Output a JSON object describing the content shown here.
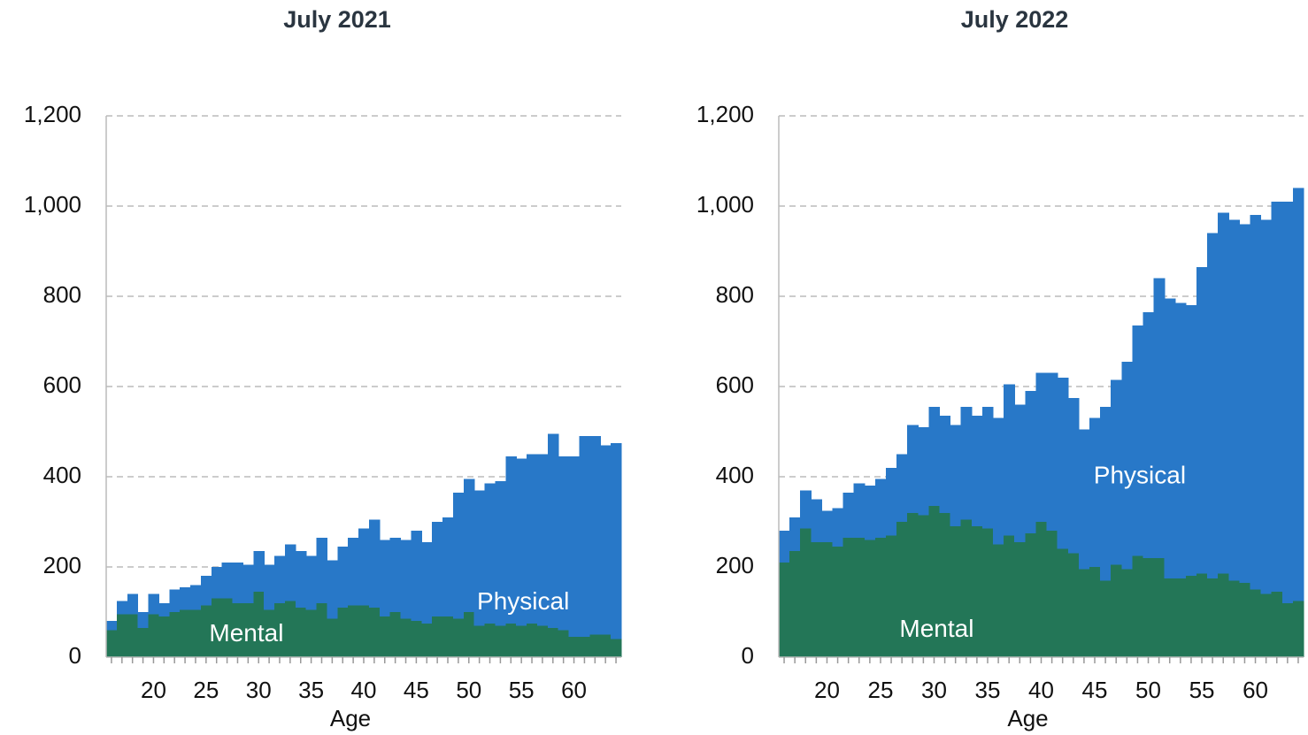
{
  "chart_data": [
    {
      "type": "bar",
      "stacked": true,
      "title": "July 2021",
      "x_label": "Age",
      "x": [
        16,
        17,
        18,
        19,
        20,
        21,
        22,
        23,
        24,
        25,
        26,
        27,
        28,
        29,
        30,
        31,
        32,
        33,
        34,
        35,
        36,
        37,
        38,
        39,
        40,
        41,
        42,
        43,
        44,
        45,
        46,
        47,
        48,
        49,
        50,
        51,
        52,
        53,
        54,
        55,
        56,
        57,
        58,
        59,
        60,
        61,
        62,
        63,
        64
      ],
      "series": [
        {
          "name": "Mental",
          "color": "#237657",
          "values": [
            60,
            95,
            95,
            65,
            95,
            90,
            100,
            105,
            105,
            115,
            130,
            130,
            120,
            120,
            145,
            105,
            120,
            125,
            110,
            105,
            120,
            85,
            110,
            115,
            115,
            110,
            90,
            100,
            85,
            80,
            75,
            90,
            90,
            85,
            100,
            70,
            75,
            70,
            75,
            70,
            75,
            70,
            65,
            60,
            45,
            45,
            50,
            50,
            40
          ]
        },
        {
          "name": "Physical",
          "color": "#2878c8",
          "values": [
            20,
            30,
            45,
            35,
            45,
            30,
            50,
            50,
            55,
            65,
            70,
            80,
            90,
            85,
            90,
            100,
            105,
            125,
            125,
            120,
            145,
            130,
            135,
            150,
            170,
            195,
            170,
            165,
            175,
            200,
            180,
            210,
            220,
            280,
            295,
            300,
            310,
            320,
            370,
            370,
            375,
            380,
            430,
            385,
            400,
            445,
            440,
            420,
            435
          ]
        }
      ],
      "xlim": [
        15.5,
        64.5
      ],
      "xticks": [
        20,
        25,
        30,
        35,
        40,
        45,
        50,
        55,
        60
      ],
      "ylim": [
        0,
        1200
      ],
      "yticks": [
        0,
        200,
        400,
        600,
        800,
        {
          "value": 1000,
          "label": "1,000"
        },
        {
          "value": 1200,
          "label": "1,200"
        }
      ],
      "grid": true
    },
    {
      "type": "bar",
      "stacked": true,
      "title": "July 2022",
      "x_label": "Age",
      "x": [
        16,
        17,
        18,
        19,
        20,
        21,
        22,
        23,
        24,
        25,
        26,
        27,
        28,
        29,
        30,
        31,
        32,
        33,
        34,
        35,
        36,
        37,
        38,
        39,
        40,
        41,
        42,
        43,
        44,
        45,
        46,
        47,
        48,
        49,
        50,
        51,
        52,
        53,
        54,
        55,
        56,
        57,
        58,
        59,
        60,
        61,
        62,
        63,
        64
      ],
      "series": [
        {
          "name": "Mental",
          "color": "#237657",
          "values": [
            210,
            235,
            285,
            255,
            255,
            245,
            265,
            265,
            260,
            265,
            270,
            300,
            320,
            315,
            335,
            320,
            290,
            305,
            290,
            285,
            250,
            270,
            255,
            275,
            300,
            280,
            240,
            230,
            195,
            200,
            170,
            205,
            195,
            225,
            220,
            220,
            175,
            175,
            180,
            185,
            175,
            185,
            170,
            165,
            150,
            140,
            145,
            120,
            125
          ]
        },
        {
          "name": "Physical",
          "color": "#2878c8",
          "values": [
            70,
            75,
            85,
            95,
            70,
            85,
            100,
            120,
            120,
            130,
            150,
            150,
            195,
            195,
            220,
            215,
            225,
            250,
            245,
            270,
            280,
            335,
            305,
            315,
            330,
            350,
            380,
            345,
            310,
            330,
            385,
            410,
            460,
            510,
            545,
            620,
            620,
            610,
            600,
            680,
            765,
            800,
            800,
            795,
            830,
            830,
            865,
            890,
            915
          ]
        }
      ],
      "xlim": [
        15.5,
        64.5
      ],
      "xticks": [
        20,
        25,
        30,
        35,
        40,
        45,
        50,
        55,
        60
      ],
      "ylim": [
        0,
        1200
      ],
      "yticks": [
        0,
        200,
        400,
        600,
        800,
        {
          "value": 1000,
          "label": "1,000"
        },
        {
          "value": 1200,
          "label": "1,200"
        }
      ],
      "grid": true
    }
  ]
}
